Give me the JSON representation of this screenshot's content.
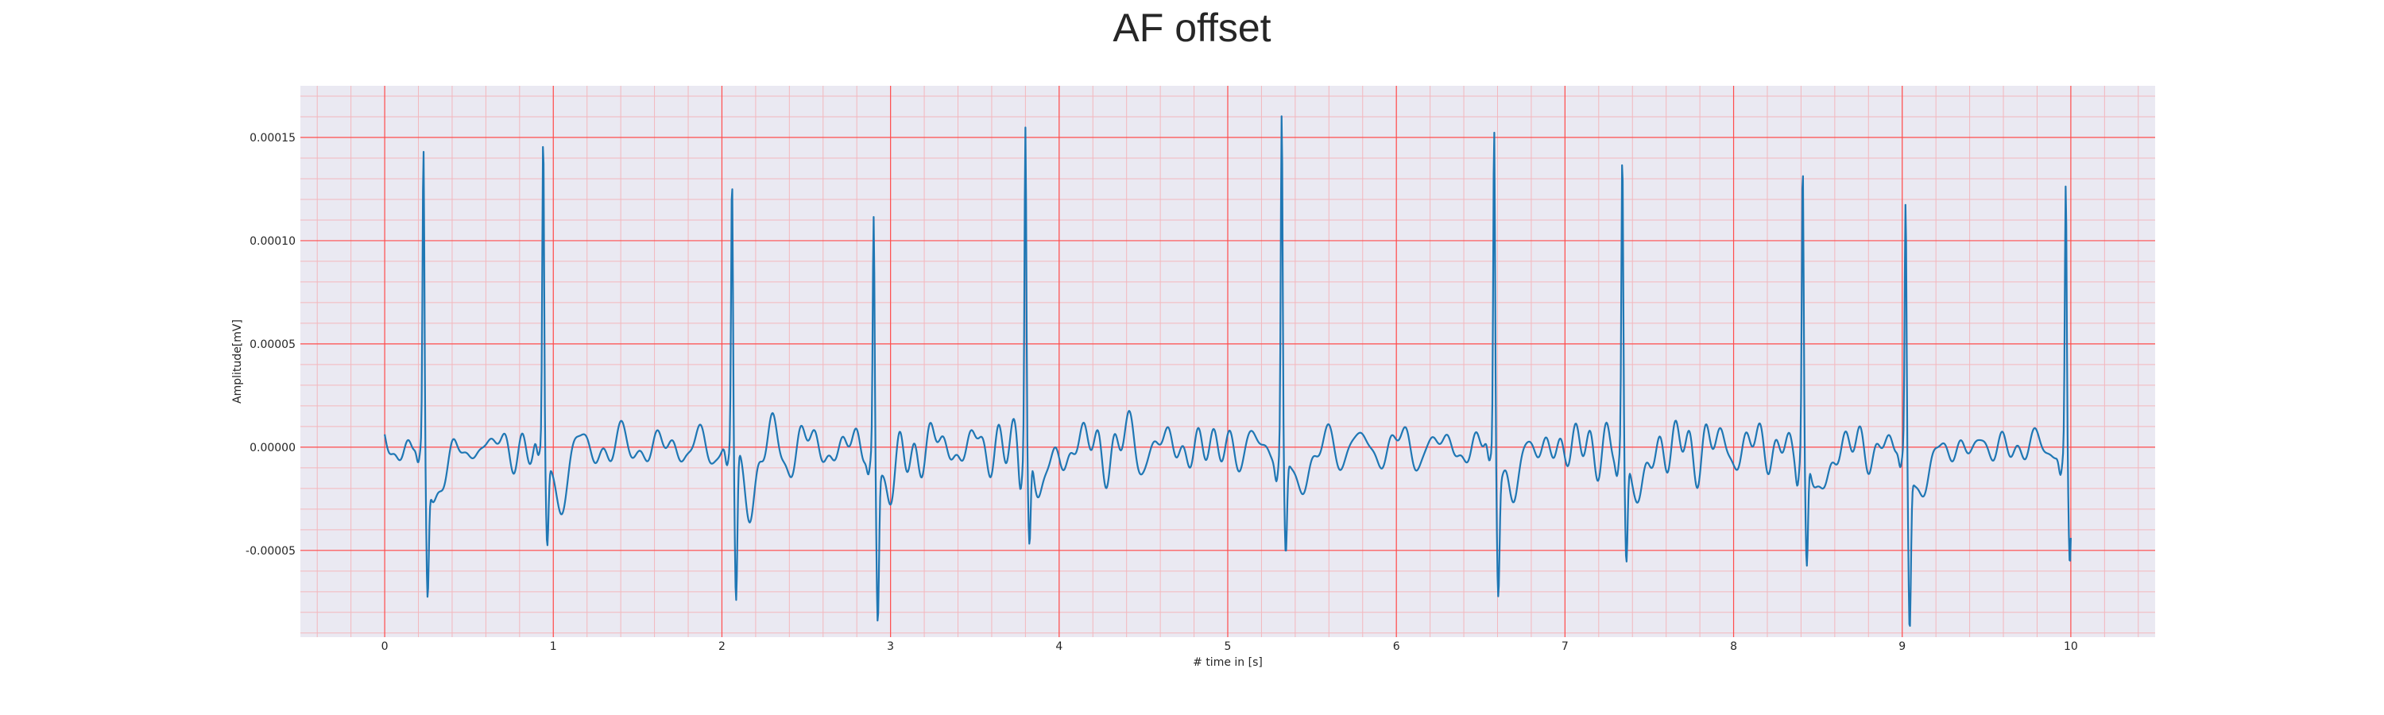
{
  "chart_data": {
    "type": "line",
    "title": "AF offset",
    "xlabel": "# time in [s]",
    "ylabel": "Amplitude[mV]",
    "xlim": [
      -0.5,
      10.5
    ],
    "ylim": [
      -9.2e-05,
      0.000175
    ],
    "xticks": [
      0,
      1,
      2,
      3,
      4,
      5,
      6,
      7,
      8,
      9,
      10
    ],
    "yticks": [
      -5e-05,
      0.0,
      5e-05,
      0.0001,
      0.00015
    ],
    "ytick_labels": [
      "-0.00005",
      "0.00000",
      "0.00005",
      "0.00010",
      "0.00015"
    ],
    "grid": true,
    "minor_grid": true,
    "legend": false,
    "colors": {
      "line": "#1f77b4",
      "major_grid": "#ff4d4d",
      "minor_grid": "#f3b7bd",
      "plot_background": "#eae9f2",
      "text": "#262626"
    },
    "series": [
      {
        "beats": [
          {
            "t": 0.23,
            "peak": 0.000145,
            "trough": -6.4e-05
          },
          {
            "t": 0.94,
            "peak": 0.000152,
            "trough": -4.2e-05
          },
          {
            "t": 2.06,
            "peak": 0.000132,
            "trough": -7.2e-05
          },
          {
            "t": 2.9,
            "peak": 0.000114,
            "trough": -7.6e-05
          },
          {
            "t": 3.8,
            "peak": 0.000158,
            "trough": -4.5e-05
          },
          {
            "t": 5.32,
            "peak": 0.000164,
            "trough": -4.7e-05
          },
          {
            "t": 6.58,
            "peak": 0.000157,
            "trough": -6e-05
          },
          {
            "t": 7.34,
            "peak": 0.000143,
            "trough": -5.2e-05
          },
          {
            "t": 8.41,
            "peak": 0.000138,
            "trough": -5.6e-05
          },
          {
            "t": 9.02,
            "peak": 0.00012,
            "trough": -8e-05
          },
          {
            "t": 9.97,
            "peak": 0.000129,
            "trough": -5.2e-05
          }
        ],
        "baseline_oscillation_amplitude": 1.5e-05,
        "t_range": [
          0,
          10
        ]
      }
    ]
  }
}
